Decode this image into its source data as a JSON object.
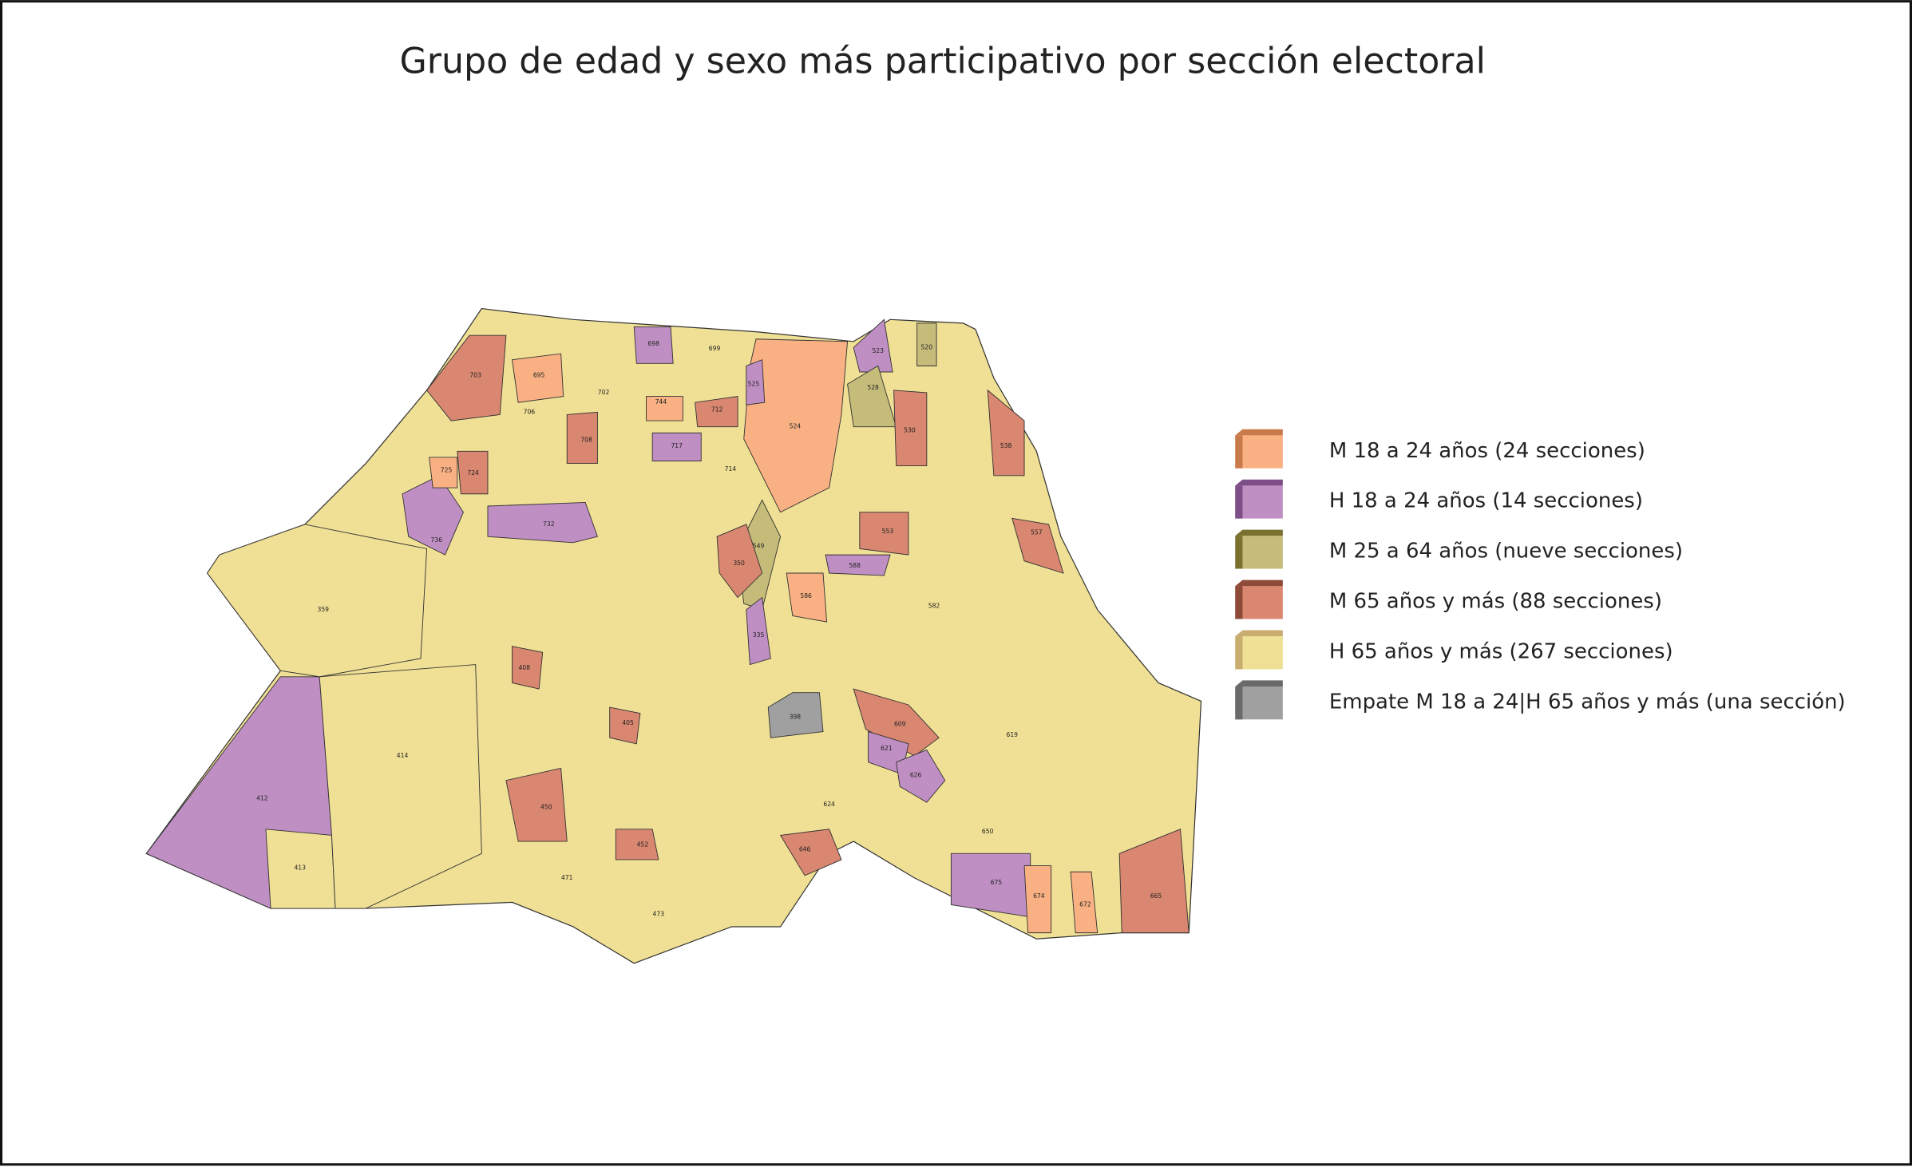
{
  "title": "Grupo de edad y sexo más participativo por sección electoral",
  "legend": [
    {
      "label": "M 18 a 24 años (24 secciones)",
      "color": "#f9b183",
      "edge": "#c87a4a"
    },
    {
      "label": "H 18 a 24 años (14 secciones)",
      "color": "#bf8fc3",
      "edge": "#7e4e86"
    },
    {
      "label": "M 25 a 64 años (nueve secciones)",
      "color": "#c5bc7a",
      "edge": "#7a7130"
    },
    {
      "label": "M 65 años y más (88 secciones)",
      "color": "#d98770",
      "edge": "#8e4a38"
    },
    {
      "label": "H 65 años y más (267 secciones)",
      "color": "#f0e095",
      "edge": "#c8ac70"
    },
    {
      "label": "Empate M 18 a 24|H 65 años y más (una sección)",
      "color": "#a0a0a0",
      "edge": "#6a6a6a"
    }
  ],
  "map": {
    "base_category": 4,
    "sections": [
      {
        "id": "412",
        "category": 1
      },
      {
        "id": "413",
        "category": 4
      },
      {
        "id": "414",
        "category": 4
      },
      {
        "id": "359",
        "category": 4
      },
      {
        "id": "524",
        "category": 0
      },
      {
        "id": "703",
        "category": 3
      },
      {
        "id": "695",
        "category": 0
      },
      {
        "id": "736",
        "category": 1
      },
      {
        "id": "732",
        "category": 1
      },
      {
        "id": "698",
        "category": 1
      },
      {
        "id": "717",
        "category": 1
      },
      {
        "id": "525",
        "category": 1
      },
      {
        "id": "523",
        "category": 1
      },
      {
        "id": "528",
        "category": 2
      },
      {
        "id": "520",
        "category": 2
      },
      {
        "id": "530",
        "category": 3
      },
      {
        "id": "549",
        "category": 2
      },
      {
        "id": "398",
        "category": 5
      },
      {
        "id": "335",
        "category": 1
      },
      {
        "id": "588",
        "category": 1
      },
      {
        "id": "350",
        "category": 3
      },
      {
        "id": "408",
        "category": 3
      },
      {
        "id": "450",
        "category": 3
      },
      {
        "id": "646",
        "category": 3
      },
      {
        "id": "609",
        "category": 3
      },
      {
        "id": "621",
        "category": 1
      },
      {
        "id": "626",
        "category": 1
      },
      {
        "id": "675",
        "category": 1
      },
      {
        "id": "674",
        "category": 0
      },
      {
        "id": "672",
        "category": 0
      },
      {
        "id": "665",
        "category": 3
      },
      {
        "id": "538",
        "category": 3
      },
      {
        "id": "557",
        "category": 3
      },
      {
        "id": "586",
        "category": 0
      },
      {
        "id": "744",
        "category": 0
      },
      {
        "id": "712",
        "category": 3
      },
      {
        "id": "708",
        "category": 3
      },
      {
        "id": "724",
        "category": 3
      },
      {
        "id": "725",
        "category": 0
      },
      {
        "id": "553",
        "category": 3
      },
      {
        "id": "405",
        "category": 3
      },
      {
        "id": "452",
        "category": 3
      },
      {
        "id": "706",
        "category": 4
      },
      {
        "id": "702",
        "category": 4
      },
      {
        "id": "699",
        "category": 4
      },
      {
        "id": "714",
        "category": 4
      },
      {
        "id": "471",
        "category": 4
      },
      {
        "id": "473",
        "category": 4
      },
      {
        "id": "619",
        "category": 4
      },
      {
        "id": "650",
        "category": 4
      },
      {
        "id": "624",
        "category": 4
      },
      {
        "id": "582",
        "category": 4
      }
    ]
  }
}
